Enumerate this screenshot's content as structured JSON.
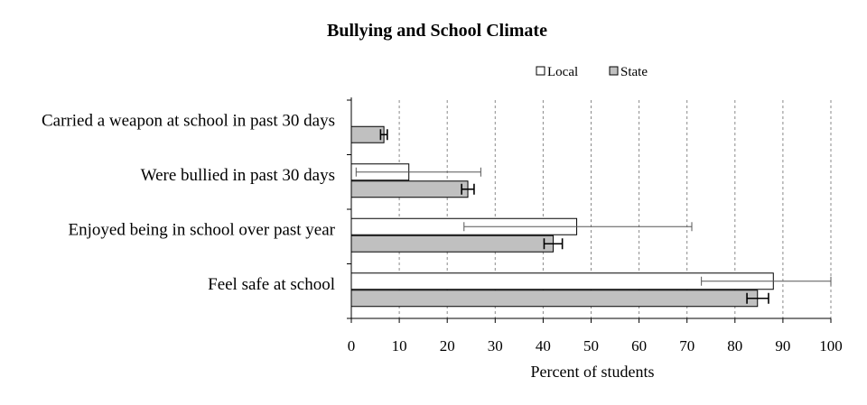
{
  "chart_data": {
    "type": "bar",
    "orientation": "horizontal",
    "title": "Bullying and School Climate",
    "xlabel": "Percent of students",
    "ylabel": "",
    "xlim": [
      0,
      100
    ],
    "xticks": [
      0,
      10,
      20,
      30,
      40,
      50,
      60,
      70,
      80,
      90,
      100
    ],
    "grid": "vertical dashed",
    "legend_position": "top-right",
    "categories": [
      "Carried a weapon at school in past 30 days",
      "Were bullied in past 30 days",
      "Enjoyed being in school over past year",
      "Feel safe at school"
    ],
    "series": [
      {
        "name": "Local",
        "color": "#ffffff",
        "values": [
          0,
          12,
          47,
          88
        ],
        "error_low": [
          0,
          1,
          23.5,
          73
        ],
        "error_high": [
          0,
          27,
          71,
          100
        ]
      },
      {
        "name": "State",
        "color": "#c0c0c0",
        "values": [
          6.8,
          24.3,
          42.1,
          84.7
        ],
        "error_low": [
          6.1,
          23,
          40.2,
          82.5
        ],
        "error_high": [
          7.5,
          25.6,
          44,
          87
        ]
      }
    ]
  }
}
